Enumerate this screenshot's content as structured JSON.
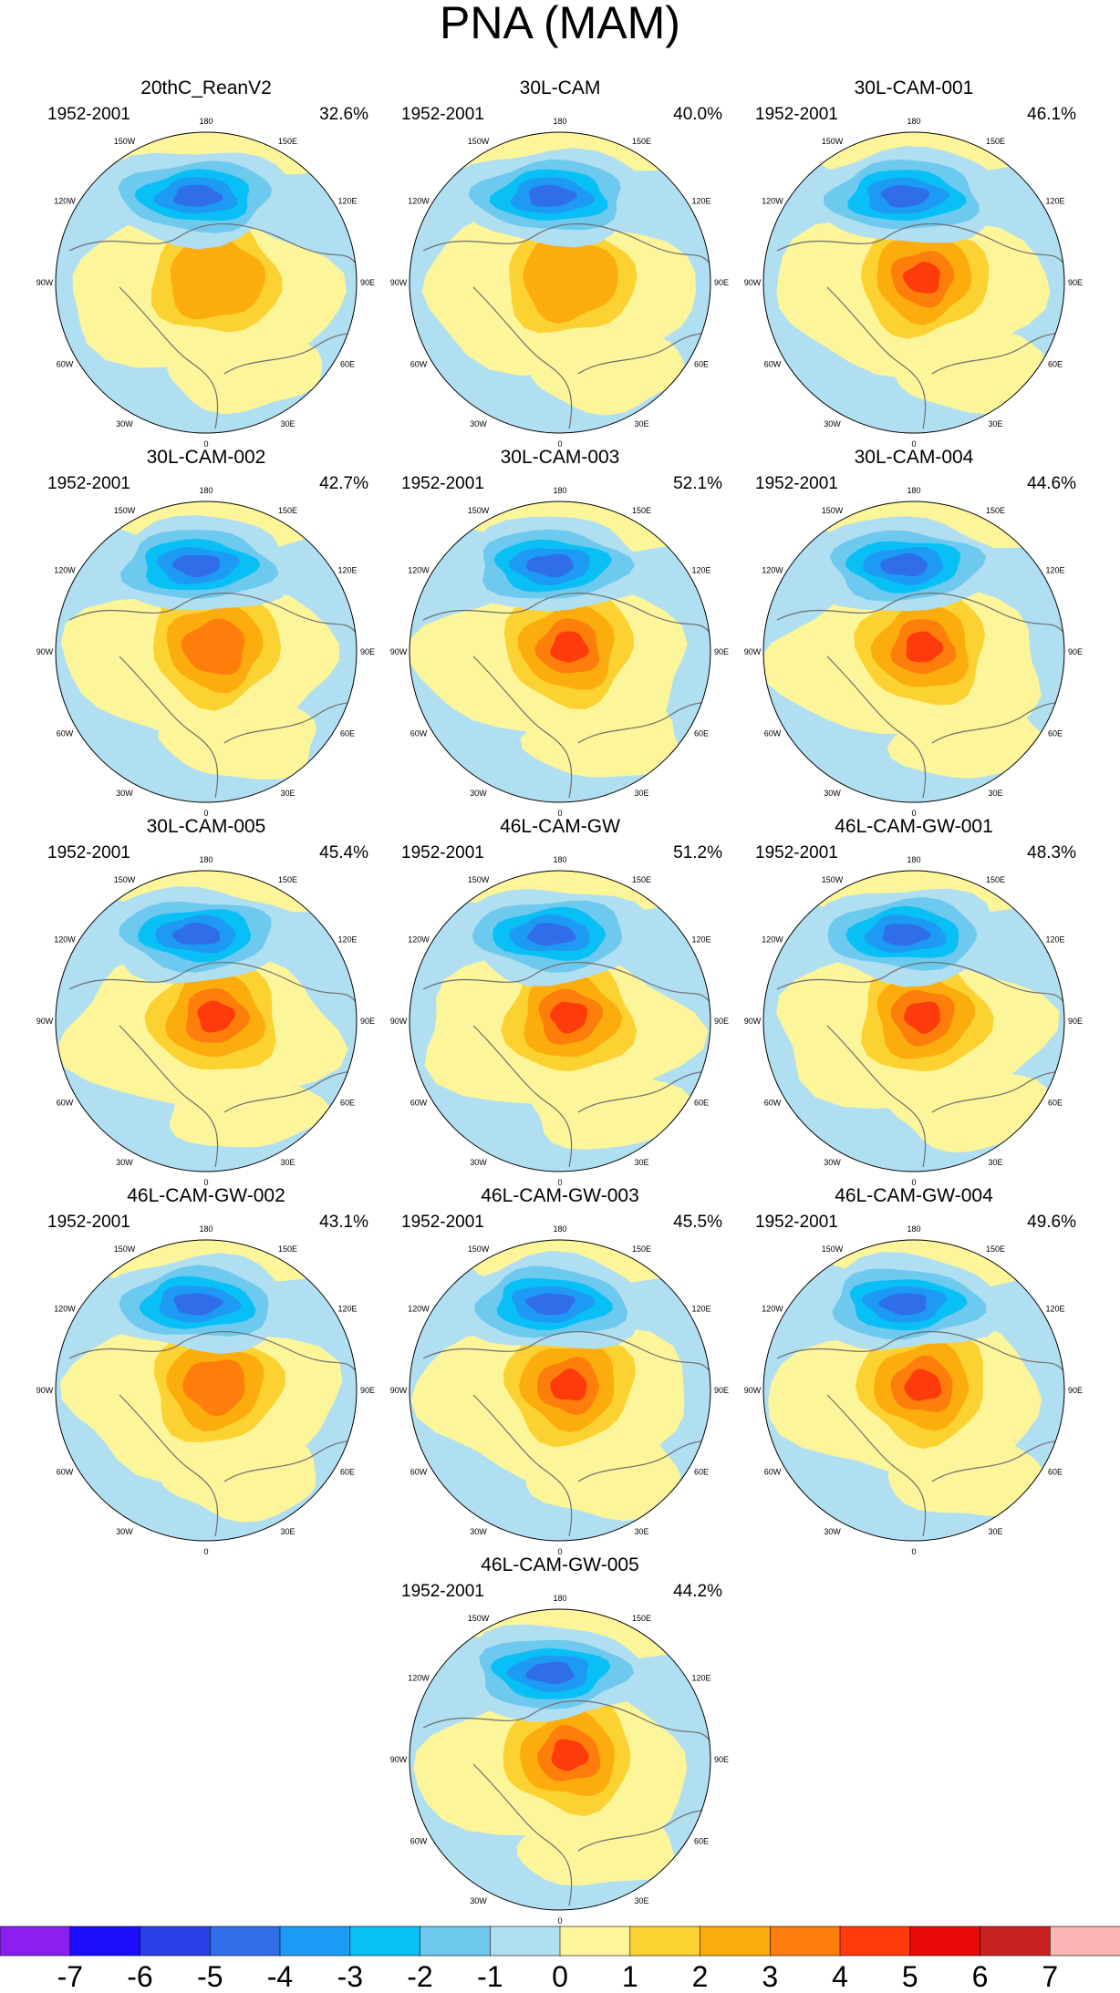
{
  "figure": {
    "title": "PNA (MAM)",
    "lon_labels": [
      "180",
      "150E",
      "120E",
      "90E",
      "60E",
      "30E",
      "0",
      "30W",
      "60W",
      "90W",
      "120W",
      "150W"
    ],
    "colors": {
      "land_outline": "#6e6e6e",
      "circle_outline": "#000000"
    }
  },
  "panels": [
    {
      "name": "20thC_ReanV2",
      "years": "1952-2001",
      "percent": "32.6%"
    },
    {
      "name": "30L-CAM",
      "years": "1952-2001",
      "percent": "40.0%"
    },
    {
      "name": "30L-CAM-001",
      "years": "1952-2001",
      "percent": "46.1%"
    },
    {
      "name": "30L-CAM-002",
      "years": "1952-2001",
      "percent": "42.7%"
    },
    {
      "name": "30L-CAM-003",
      "years": "1952-2001",
      "percent": "52.1%"
    },
    {
      "name": "30L-CAM-004",
      "years": "1952-2001",
      "percent": "44.6%"
    },
    {
      "name": "30L-CAM-005",
      "years": "1952-2001",
      "percent": "45.4%"
    },
    {
      "name": "46L-CAM-GW",
      "years": "1952-2001",
      "percent": "51.2%"
    },
    {
      "name": "46L-CAM-GW-001",
      "years": "1952-2001",
      "percent": "48.3%"
    },
    {
      "name": "46L-CAM-GW-002",
      "years": "1952-2001",
      "percent": "43.1%"
    },
    {
      "name": "46L-CAM-GW-003",
      "years": "1952-2001",
      "percent": "45.5%"
    },
    {
      "name": "46L-CAM-GW-004",
      "years": "1952-2001",
      "percent": "49.6%"
    },
    {
      "name": "46L-CAM-GW-005",
      "years": "1952-2001",
      "percent": "44.2%"
    }
  ],
  "colorbar": {
    "labels": [
      "-7",
      "-6",
      "-5",
      "-4",
      "-3",
      "-2",
      "-1",
      "0",
      "1",
      "2",
      "3",
      "4",
      "5",
      "6",
      "7"
    ],
    "colors": [
      "#8a1ff0",
      "#1a0dfb",
      "#2b3fe6",
      "#2f6ee8",
      "#1d9af3",
      "#08c0f5",
      "#6ec9ee",
      "#b0dff2",
      "#fdf59a",
      "#fcd232",
      "#fcac0c",
      "#fd7e0b",
      "#fe3b0b",
      "#e8090b",
      "#c92020",
      "#fdb4b4"
    ]
  }
}
